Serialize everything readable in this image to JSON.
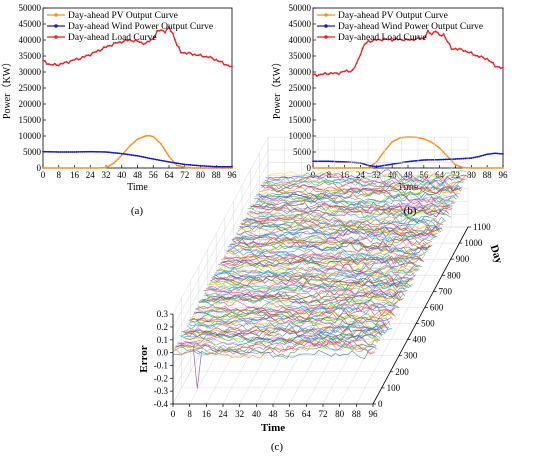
{
  "chart_data": [
    {
      "panel_label": "(a)",
      "type": "line",
      "xlabel": "Time",
      "ylabel": "Power（KW）",
      "xlim": [
        0,
        96
      ],
      "ylim": [
        0,
        50000
      ],
      "xticks": [
        "0",
        "8",
        "16",
        "24",
        "32",
        "40",
        "48",
        "56",
        "64",
        "72",
        "80",
        "88",
        "96"
      ],
      "yticks": [
        "0",
        "5000",
        "10000",
        "15000",
        "20000",
        "25000",
        "30000",
        "35000",
        "40000",
        "45000",
        "50000"
      ],
      "legend_position": "top-left",
      "series": [
        {
          "name": "Day-ahead PV Output Curve",
          "color": "#f5921e",
          "marker": "circle",
          "x": [
            0,
            24,
            28,
            32,
            36,
            40,
            44,
            48,
            52,
            54,
            56,
            60,
            64,
            68,
            72,
            76,
            80,
            96
          ],
          "y": [
            0,
            0,
            0,
            100,
            1500,
            4000,
            6800,
            9000,
            10000,
            10100,
            9800,
            7500,
            3600,
            800,
            200,
            0,
            0,
            0
          ]
        },
        {
          "name": "Day-ahead Wind Power Output Curve",
          "color": "#1a1acc",
          "marker": "circle",
          "x": [
            0,
            8,
            16,
            24,
            32,
            40,
            48,
            56,
            64,
            72,
            80,
            88,
            96
          ],
          "y": [
            5100,
            5000,
            5000,
            5100,
            5000,
            4500,
            3800,
            2800,
            1900,
            1100,
            700,
            400,
            400
          ]
        },
        {
          "name": "Day-ahead Load Curve",
          "color": "#ee1f25",
          "marker": "circle",
          "x": [
            0,
            4,
            8,
            12,
            16,
            20,
            24,
            28,
            32,
            36,
            40,
            44,
            48,
            52,
            56,
            58,
            60,
            62,
            64,
            66,
            68,
            70,
            72,
            76,
            80,
            84,
            88,
            92,
            96
          ],
          "y": [
            33500,
            32200,
            32300,
            33000,
            33800,
            34500,
            35500,
            36600,
            37800,
            38800,
            39500,
            40000,
            39600,
            38800,
            40500,
            42500,
            43200,
            42600,
            43800,
            42000,
            38500,
            36200,
            36000,
            35600,
            35100,
            34700,
            33800,
            32600,
            31500
          ]
        }
      ]
    },
    {
      "panel_label": "(b)",
      "type": "line",
      "xlabel": "Time",
      "ylabel": "Power（KW）",
      "xlim": [
        0,
        96
      ],
      "ylim": [
        0,
        50000
      ],
      "xticks": [
        "0",
        "8",
        "16",
        "24",
        "32",
        "40",
        "48",
        "56",
        "64",
        "72",
        "80",
        "88",
        "96"
      ],
      "yticks": [
        "0",
        "5000",
        "10000",
        "15000",
        "20000",
        "25000",
        "30000",
        "35000",
        "40000",
        "45000",
        "50000"
      ],
      "legend_position": "top-left",
      "series": [
        {
          "name": "Day-ahead PV Output Curve",
          "color": "#f5921e",
          "marker": "circle",
          "x": [
            0,
            20,
            24,
            28,
            32,
            36,
            40,
            44,
            48,
            52,
            56,
            60,
            64,
            68,
            72,
            76,
            80,
            96
          ],
          "y": [
            0,
            0,
            0,
            100,
            1800,
            5200,
            8200,
            9400,
            9700,
            9600,
            9100,
            8000,
            6200,
            3600,
            1000,
            100,
            0,
            0
          ]
        },
        {
          "name": "Day-ahead Wind Power Output Curve",
          "color": "#1a1acc",
          "marker": "circle",
          "x": [
            0,
            8,
            16,
            24,
            28,
            32,
            40,
            48,
            56,
            64,
            72,
            80,
            84,
            88,
            92,
            96
          ],
          "y": [
            2100,
            2100,
            1900,
            1600,
            800,
            400,
            1200,
            2000,
            2500,
            2600,
            2800,
            3100,
            3600,
            4300,
            4600,
            4400
          ]
        },
        {
          "name": "Day-ahead Load Curve",
          "color": "#ee1f25",
          "marker": "circle",
          "x": [
            0,
            4,
            8,
            12,
            16,
            20,
            22,
            24,
            26,
            28,
            32,
            36,
            40,
            44,
            48,
            52,
            56,
            58,
            60,
            62,
            64,
            66,
            68,
            70,
            72,
            76,
            80,
            84,
            88,
            92,
            96
          ],
          "y": [
            29000,
            29200,
            29600,
            29500,
            30200,
            30400,
            32500,
            35800,
            38500,
            39600,
            40000,
            40200,
            40100,
            40200,
            40000,
            40300,
            40500,
            42500,
            41800,
            43000,
            41200,
            41800,
            39500,
            37200,
            37300,
            36800,
            35800,
            34800,
            34100,
            32000,
            31000
          ]
        }
      ]
    },
    {
      "panel_label": "(c)",
      "type": "line",
      "xlabel": "Time",
      "ylabel": "Error",
      "zlabel": "Day",
      "xlim": [
        0,
        96
      ],
      "zlim": [
        -0.4,
        0.3
      ],
      "ylim_day": [
        0,
        1100
      ],
      "xticks": [
        "0",
        "8",
        "16",
        "24",
        "32",
        "40",
        "48",
        "56",
        "64",
        "72",
        "80",
        "88",
        "96"
      ],
      "zticks": [
        "-0.4",
        "-0.3",
        "-0.2",
        "-0.1",
        "0.0",
        "0.1",
        "0.2",
        "0.3"
      ],
      "dayticks": [
        "0",
        "100",
        "200",
        "300",
        "400",
        "500",
        "600",
        "700",
        "800",
        "900",
        "1000",
        "1100"
      ],
      "grid": true,
      "description_series_count": 1100
    }
  ]
}
